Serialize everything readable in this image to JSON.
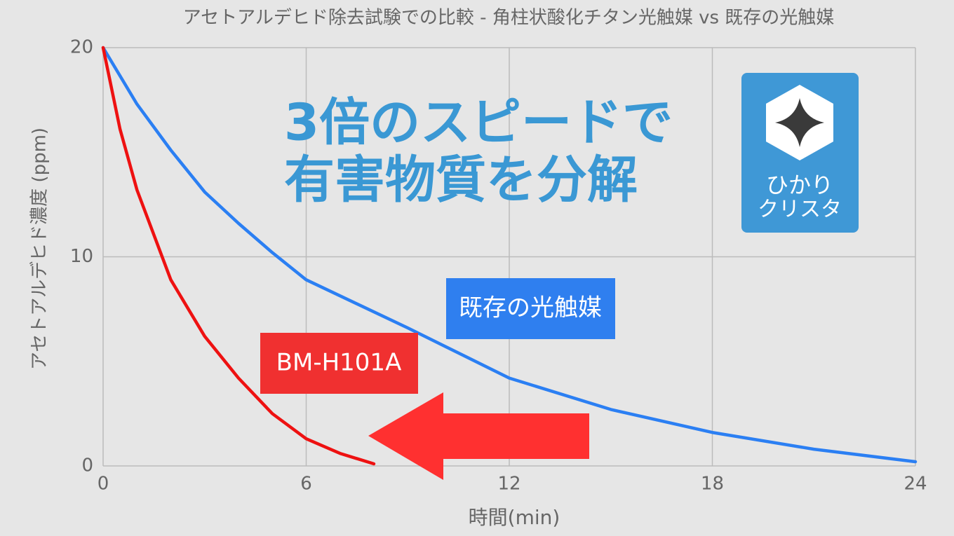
{
  "chart_data": {
    "type": "line",
    "title": "アセトアルデヒド除去試験での比較 - 角柱状酸化チタン光触媒 vs 既存の光触媒",
    "x_label": "時間(min)",
    "y_label": "アセトアルデヒド濃度 (ppm)",
    "xlim": [
      0,
      24
    ],
    "xticks": [
      0,
      6,
      12,
      18,
      24
    ],
    "ylim": [
      0,
      20
    ],
    "yticks": [
      0,
      10,
      20
    ],
    "grid": true,
    "series": [
      {
        "name": "既存の光触媒",
        "color": "#2b7ff3",
        "x": [
          0,
          1,
          2,
          3,
          4,
          5,
          6,
          9,
          12,
          15,
          18,
          21,
          24
        ],
        "values": [
          20,
          17.3,
          15.1,
          13.1,
          11.6,
          10.2,
          8.9,
          6.6,
          4.2,
          2.7,
          1.6,
          0.8,
          0.2
        ]
      },
      {
        "name": "BM-H101A",
        "color": "#ee1111",
        "x": [
          0,
          0.5,
          1,
          2,
          3,
          4,
          5,
          6,
          7,
          8
        ],
        "values": [
          20,
          16.1,
          13.2,
          8.9,
          6.2,
          4.2,
          2.5,
          1.3,
          0.6,
          0.1
        ]
      }
    ],
    "annotations": [
      "3倍のスピードで",
      "有害物質を分解"
    ],
    "logo": [
      "ひかり",
      "クリスタ"
    ]
  }
}
